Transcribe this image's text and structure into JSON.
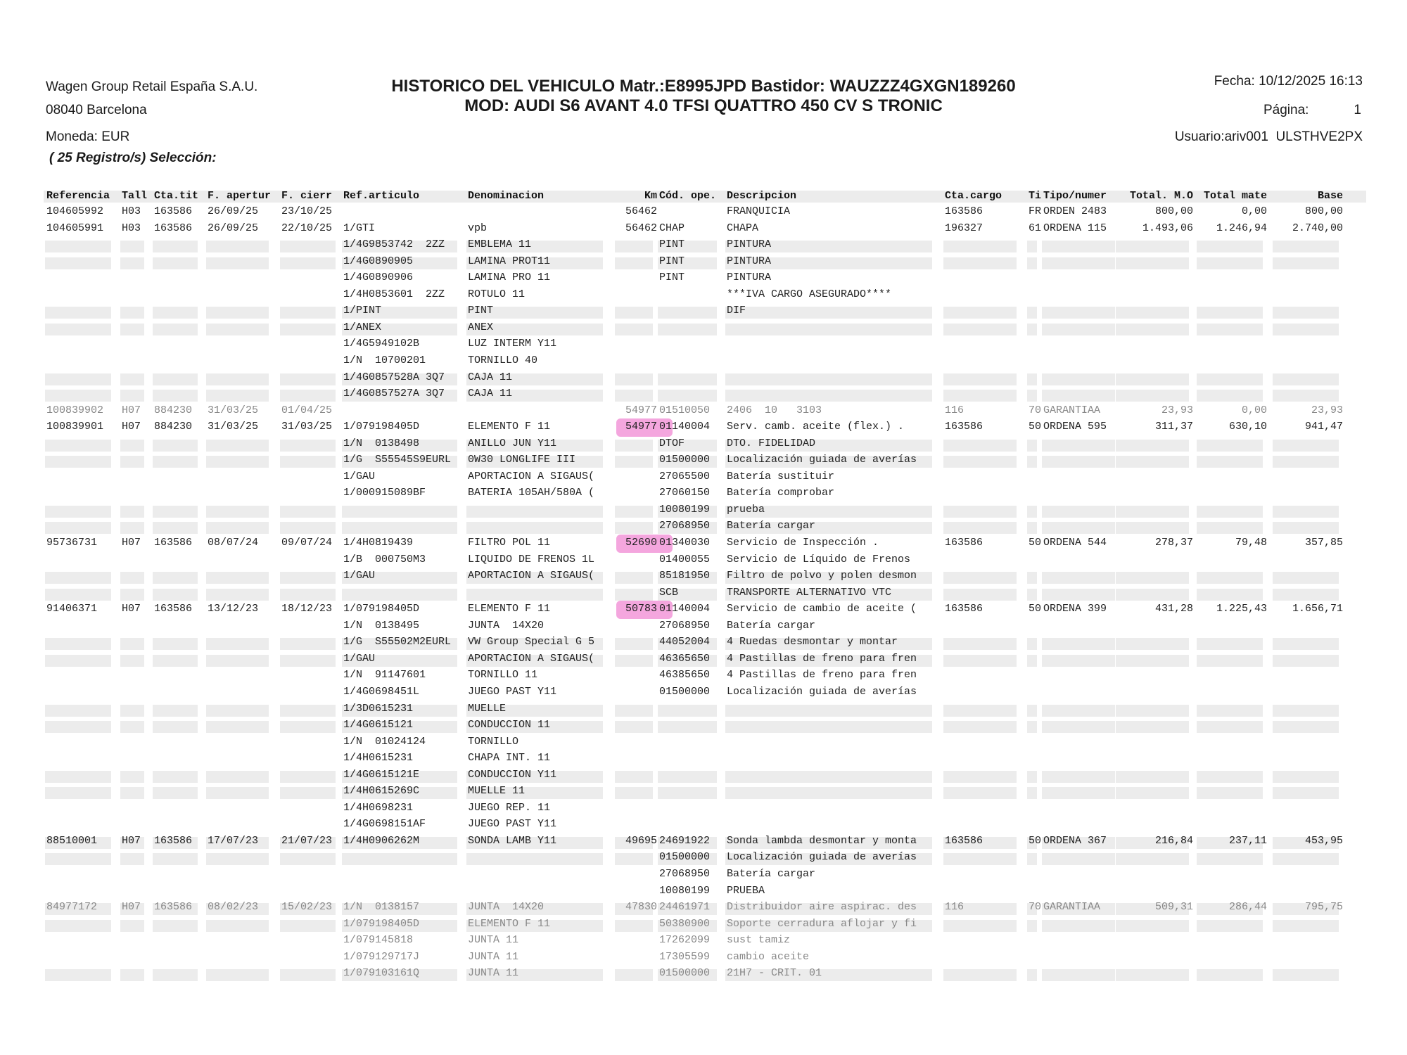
{
  "header": {
    "company": "Wagen Group Retail España S.A.U.",
    "city": "08040 Barcelona",
    "currency": "Moneda: EUR",
    "records": "( 25 Registro/s) Selección:",
    "title": "HISTORICO DEL VEHICULO Matr.:E8995JPD Bastidor: WAUZZZ4GXGN189260",
    "model": "MOD: AUDI S6 AVANT 4.0 TFSI QUATTRO 450 CV S TRONIC",
    "date": "Fecha: 10/12/2025 16:13",
    "page_label": "Página:",
    "page_number": "1",
    "user": "Usuario:ariv001  ULSTHVE2PX"
  },
  "table": {
    "columns": {
      "ref": "Referencia",
      "tall": "Tall",
      "cta": "Cta.tit",
      "fa": "F. apertur",
      "fc": "F. cierr",
      "art": "Ref.articulo",
      "den": "Denominacion",
      "km": "Km",
      "cod": "Cód. ope.",
      "desc": "Descripcion",
      "cargo": "Cta.cargo",
      "ti": "Ti",
      "tipo": "Tipo/numer",
      "mo": "Total. M.O",
      "mate": "Total mate",
      "base": "Base"
    },
    "rows": [
      {
        "ref": "104605992",
        "tall": "H03",
        "cta": "163586",
        "fa": "26/09/25",
        "fc": "23/10/25",
        "km": "56462",
        "desc": "FRANQUICIA",
        "cargo": "163586",
        "ti": "FR",
        "tipo": "ORDEN 2483",
        "mo": "800,00",
        "mate": "0,00",
        "base": "800,00"
      },
      {
        "ref": "104605991",
        "tall": "H03",
        "cta": "163586",
        "fa": "26/09/25",
        "fc": "22/10/25",
        "art": "1/GTI",
        "den": "vpb",
        "km": "56462",
        "cod": "CHAP",
        "desc": "CHAPA",
        "cargo": "196327",
        "ti": "61",
        "tipo": "ORDENA 115",
        "mo": "1.493,06",
        "mate": "1.246,94",
        "base": "2.740,00"
      },
      {
        "art": "1/4G9853742  2ZZ",
        "den": "EMBLEMA 11",
        "cod": "PINT",
        "desc": "PINTURA"
      },
      {
        "art": "1/4G0890905",
        "den": "LAMINA PROT11",
        "cod": "PINT",
        "desc": "PINTURA"
      },
      {
        "art": "1/4G0890906",
        "den": "LAMINA PRO 11",
        "cod": "PINT",
        "desc": "PINTURA"
      },
      {
        "art": "1/4H0853601  2ZZ",
        "den": "ROTULO 11",
        "desc": "***IVA CARGO ASEGURADO****"
      },
      {
        "art": "1/PINT",
        "den": "PINT",
        "desc": "DIF"
      },
      {
        "art": "1/ANEX",
        "den": "ANEX"
      },
      {
        "art": "1/4G5949102B",
        "den": "LUZ INTERM Y11"
      },
      {
        "art": "1/N  10700201",
        "den": "TORNILLO 40"
      },
      {
        "art": "1/4G0857528A 3Q7",
        "den": "CAJA 11"
      },
      {
        "art": "1/4G0857527A 3Q7",
        "den": "CAJA 11"
      },
      {
        "ref": "100839902",
        "tall": "H07",
        "cta": "884230",
        "fa": "31/03/25",
        "fc": "01/04/25",
        "km": "54977",
        "cod": "01510050",
        "desc": "2406  10   3103",
        "cargo": "116",
        "ti": "70",
        "tipo": "GARANTIAA",
        "mo": "23,93",
        "mate": "0,00",
        "base": "23,93",
        "faded": true
      },
      {
        "ref": "100839901",
        "tall": "H07",
        "cta": "884230",
        "fa": "31/03/25",
        "fc": "31/03/25",
        "art": "1/079198405D",
        "den": "ELEMENTO F 11",
        "km": "54977",
        "cod": "01140004",
        "desc": "Serv. camb. aceite (flex.) .",
        "cargo": "163586",
        "ti": "50",
        "tipo": "ORDENA 595",
        "mo": "311,37",
        "mate": "630,10",
        "base": "941,47",
        "highlighted": true
      },
      {
        "art": "1/N  0138498",
        "den": "ANILLO JUN Y11",
        "cod": "DTOF",
        "desc": "DTO. FIDELIDAD"
      },
      {
        "art": "1/G  S55545S9EURL",
        "den": "0W30 LONGLIFE III",
        "cod": "01500000",
        "desc": "Localización guiada de averías"
      },
      {
        "art": "1/GAU",
        "den": "APORTACION A SIGAUS(",
        "cod": "27065500",
        "desc": "Batería sustituir"
      },
      {
        "art": "1/000915089BF",
        "den": "BATERIA 105AH/580A (",
        "cod": "27060150",
        "desc": "Batería comprobar"
      },
      {
        "cod": "10080199",
        "desc": "prueba"
      },
      {
        "cod": "27068950",
        "desc": "Batería cargar"
      },
      {
        "ref": "95736731",
        "tall": "H07",
        "cta": "163586",
        "fa": "08/07/24",
        "fc": "09/07/24",
        "art": "1/4H0819439",
        "den": "FILTRO POL 11",
        "km": "52690",
        "cod": "01340030",
        "desc": "Servicio de Inspección .",
        "cargo": "163586",
        "ti": "50",
        "tipo": "ORDENA 544",
        "mo": "278,37",
        "mate": "79,48",
        "base": "357,85",
        "highlighted": true
      },
      {
        "art": "1/B  000750M3",
        "den": "LIQUIDO DE FRENOS 1L",
        "cod": "01400055",
        "desc": "Servicio de Líquido de Frenos"
      },
      {
        "art": "1/GAU",
        "den": "APORTACION A SIGAUS(",
        "cod": "85181950",
        "desc": "Filtro de polvo y polen desmon"
      },
      {
        "cod": "SCB",
        "desc": "TRANSPORTE ALTERNATIVO VTC"
      },
      {
        "ref": "91406371",
        "tall": "H07",
        "cta": "163586",
        "fa": "13/12/23",
        "fc": "18/12/23",
        "art": "1/079198405D",
        "den": "ELEMENTO F 11",
        "km": "50783",
        "cod": "01140004",
        "desc": "Servicio de cambio de aceite (",
        "cargo": "163586",
        "ti": "50",
        "tipo": "ORDENA 399",
        "mo": "431,28",
        "mate": "1.225,43",
        "base": "1.656,71",
        "highlighted": true
      },
      {
        "art": "1/N  0138495",
        "den": "JUNTA  14X20",
        "cod": "27068950",
        "desc": "Batería cargar"
      },
      {
        "art": "1/G  S55502M2EURL",
        "den": "VW Group Special G 5",
        "cod": "44052004",
        "desc": "4 Ruedas desmontar y montar"
      },
      {
        "art": "1/GAU",
        "den": "APORTACION A SIGAUS(",
        "cod": "46365650",
        "desc": "4 Pastillas de freno para fren"
      },
      {
        "art": "1/N  91147601",
        "den": "TORNILLO 11",
        "cod": "46385650",
        "desc": "4 Pastillas de freno para fren"
      },
      {
        "art": "1/4G0698451L",
        "den": "JUEGO PAST Y11",
        "cod": "01500000",
        "desc": "Localización guiada de averías"
      },
      {
        "art": "1/3D0615231",
        "den": "MUELLE"
      },
      {
        "art": "1/4G0615121",
        "den": "CONDUCCION 11"
      },
      {
        "art": "1/N  01024124",
        "den": "TORNILLO"
      },
      {
        "art": "1/4H0615231",
        "den": "CHAPA INT. 11"
      },
      {
        "art": "1/4G0615121E",
        "den": "CONDUCCION Y11"
      },
      {
        "art": "1/4H0615269C",
        "den": "MUELLE 11"
      },
      {
        "art": "1/4H0698231",
        "den": "JUEGO REP. 11"
      },
      {
        "art": "1/4G0698151AF",
        "den": "JUEGO PAST Y11"
      },
      {
        "ref": "88510001",
        "tall": "H07",
        "cta": "163586",
        "fa": "17/07/23",
        "fc": "21/07/23",
        "art": "1/4H0906262M",
        "den": "SONDA LAMB Y11",
        "km": "49695",
        "cod": "24691922",
        "desc": "Sonda lambda desmontar y monta",
        "cargo": "163586",
        "ti": "50",
        "tipo": "ORDENA 367",
        "mo": "216,84",
        "mate": "237,11",
        "base": "453,95"
      },
      {
        "cod": "01500000",
        "desc": "Localización guiada de averías"
      },
      {
        "cod": "27068950",
        "desc": "Batería cargar"
      },
      {
        "cod": "10080199",
        "desc": "PRUEBA"
      },
      {
        "ref": "84977172",
        "tall": "H07",
        "cta": "163586",
        "fa": "08/02/23",
        "fc": "15/02/23",
        "art": "1/N  0138157",
        "den": "JUNTA  14X20",
        "km": "47830",
        "cod": "24461971",
        "desc": "Distribuidor aire aspirac. des",
        "cargo": "116",
        "ti": "70",
        "tipo": "GARANTIAA",
        "mo": "509,31",
        "mate": "286,44",
        "base": "795,75",
        "faded": true
      },
      {
        "art": "1/079198405D",
        "den": "ELEMENTO F 11",
        "cod": "50380900",
        "desc": "Soporte cerradura aflojar y fi",
        "faded": true
      },
      {
        "art": "1/079145818",
        "den": "JUNTA 11",
        "cod": "17262099",
        "desc": "sust tamiz",
        "faded": true
      },
      {
        "art": "1/079129717J",
        "den": "JUNTA 11",
        "cod": "17305599",
        "desc": "cambio aceite",
        "faded": true
      },
      {
        "art": "1/079103161Q",
        "den": "JUNTA 11",
        "cod": "01500000",
        "desc": "21H7 - CRIT. 01",
        "faded": true
      }
    ]
  }
}
